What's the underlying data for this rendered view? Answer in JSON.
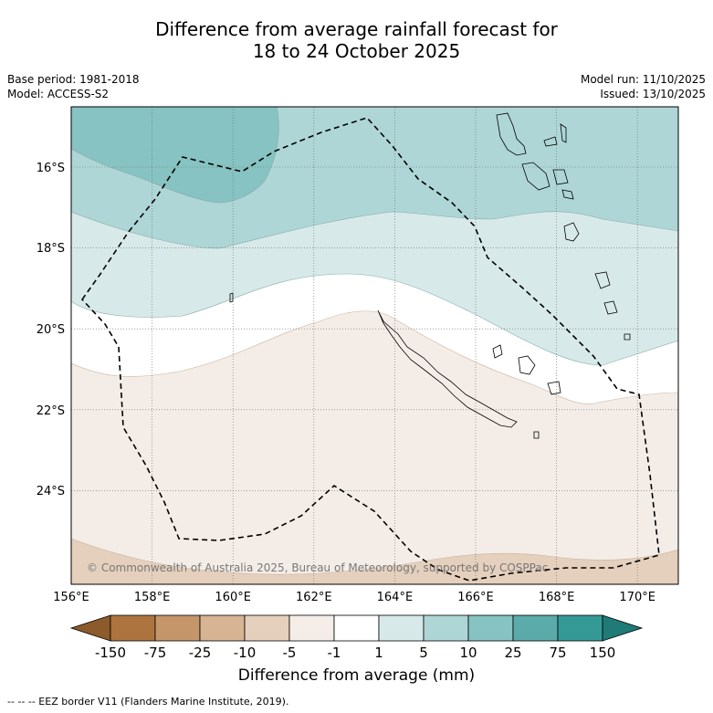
{
  "title": {
    "line1": "Difference from average rainfall forecast for",
    "line2": "18 to 24 October 2025"
  },
  "meta": {
    "base_period": "Base period: 1981-2018",
    "model": "Model: ACCESS-S2",
    "model_run": "Model run: 11/10/2025",
    "issued": "Issued: 13/10/2025"
  },
  "map": {
    "lon_ticks": [
      "156°E",
      "158°E",
      "160°E",
      "162°E",
      "164°E",
      "166°E",
      "168°E",
      "170°E"
    ],
    "lat_ticks": [
      "16°S",
      "18°S",
      "20°S",
      "22°S",
      "24°S"
    ],
    "copyright": "© Commonwealth of Australia 2025, Bureau of Meteorology, supported by COSPPac"
  },
  "colorbar": {
    "ticks": [
      "-150",
      "-75",
      "-25",
      "-10",
      "-5",
      "-1",
      "1",
      "5",
      "10",
      "25",
      "75",
      "150"
    ],
    "colors": [
      "#8c5a2b",
      "#ad7440",
      "#c4966a",
      "#d6b494",
      "#e5d0bd",
      "#f5eee8",
      "#ffffff",
      "#d7eae9",
      "#aed6d6",
      "#86c3c2",
      "#5aabaa",
      "#359a96",
      "#1f7a78"
    ],
    "label": "Difference from average (mm)"
  },
  "legend": {
    "eez": "--  --  -- EEZ border V11 (Flanders Marine Institute, 2019)."
  }
}
